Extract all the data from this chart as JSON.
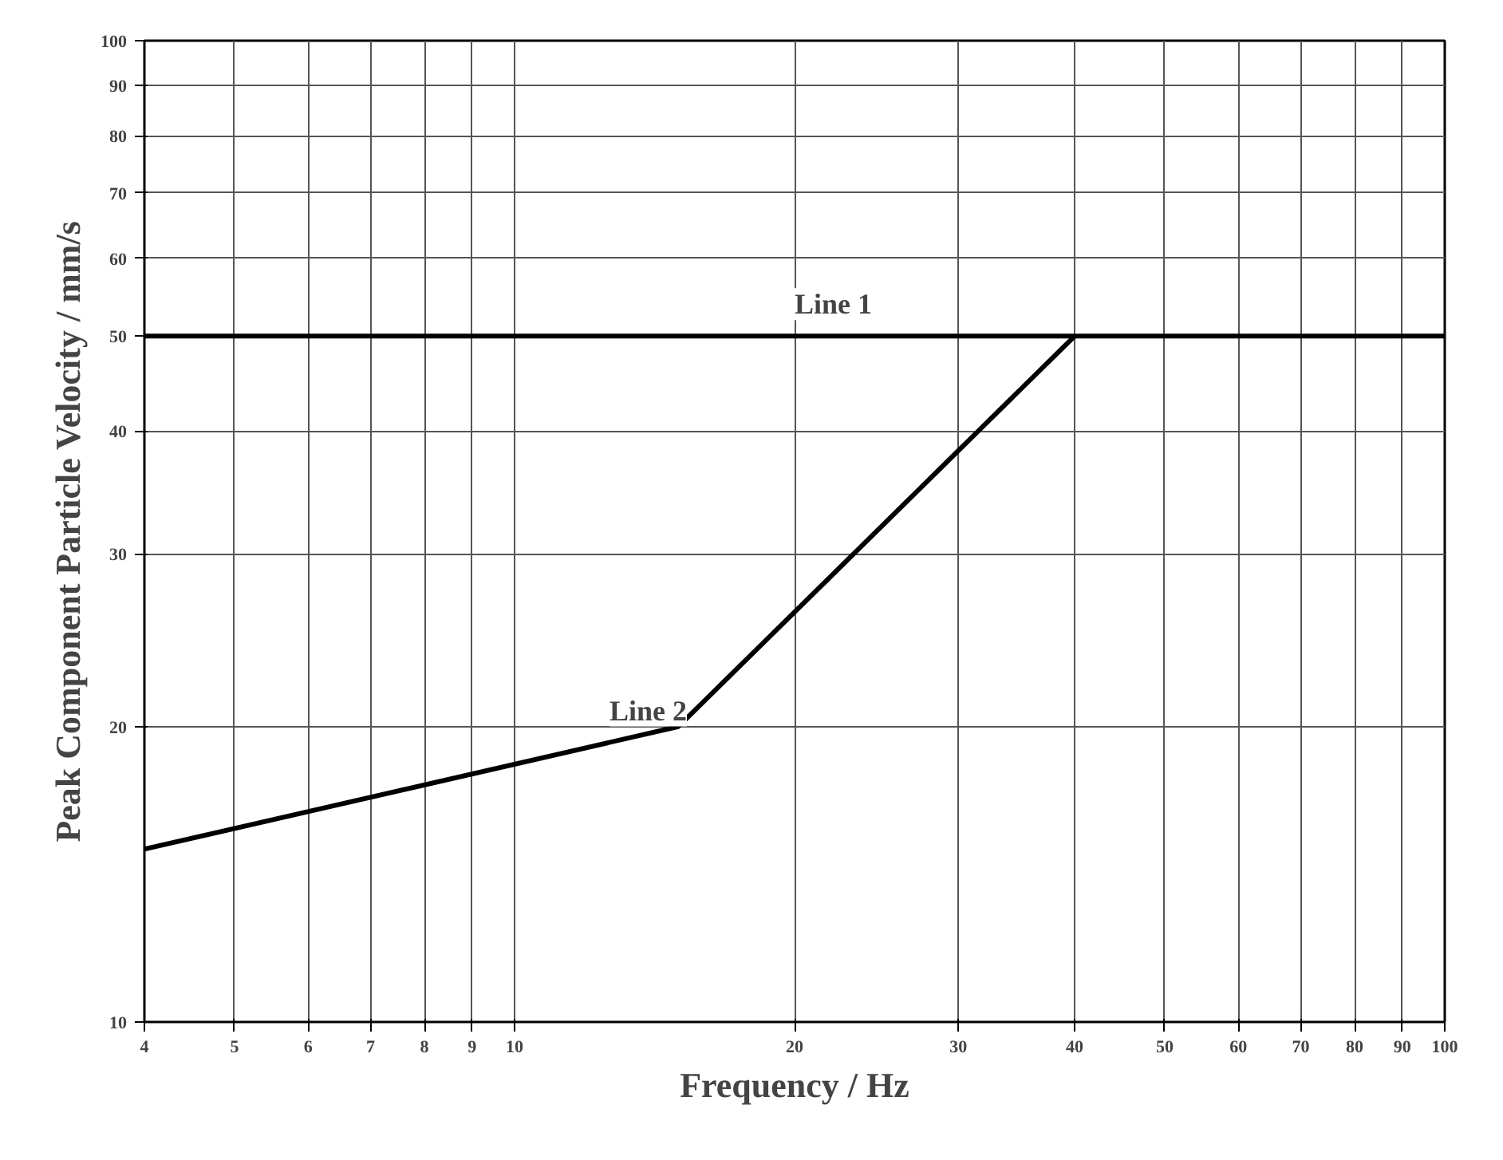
{
  "chart_data": {
    "type": "line",
    "xlabel": "Frequency / Hz",
    "ylabel": "Peak Component Particle Velocity / mm/s",
    "log": "xy",
    "xlim": [
      4,
      100
    ],
    "ylim": [
      10,
      100
    ],
    "xticks": [
      4,
      5,
      6,
      7,
      8,
      9,
      10,
      20,
      30,
      40,
      50,
      60,
      70,
      80,
      90,
      100
    ],
    "yticks": [
      10,
      20,
      30,
      40,
      50,
      60,
      70,
      80,
      90,
      100
    ],
    "grid": true,
    "marker": "none",
    "line_style": "solid",
    "series": [
      {
        "name": "Line 1",
        "color": "#000000",
        "x": [
          4,
          100
        ],
        "values": [
          50,
          50
        ]
      },
      {
        "name": "Line 2",
        "color": "#000000",
        "x": [
          4,
          15,
          40
        ],
        "values": [
          15,
          20,
          50
        ]
      }
    ]
  }
}
